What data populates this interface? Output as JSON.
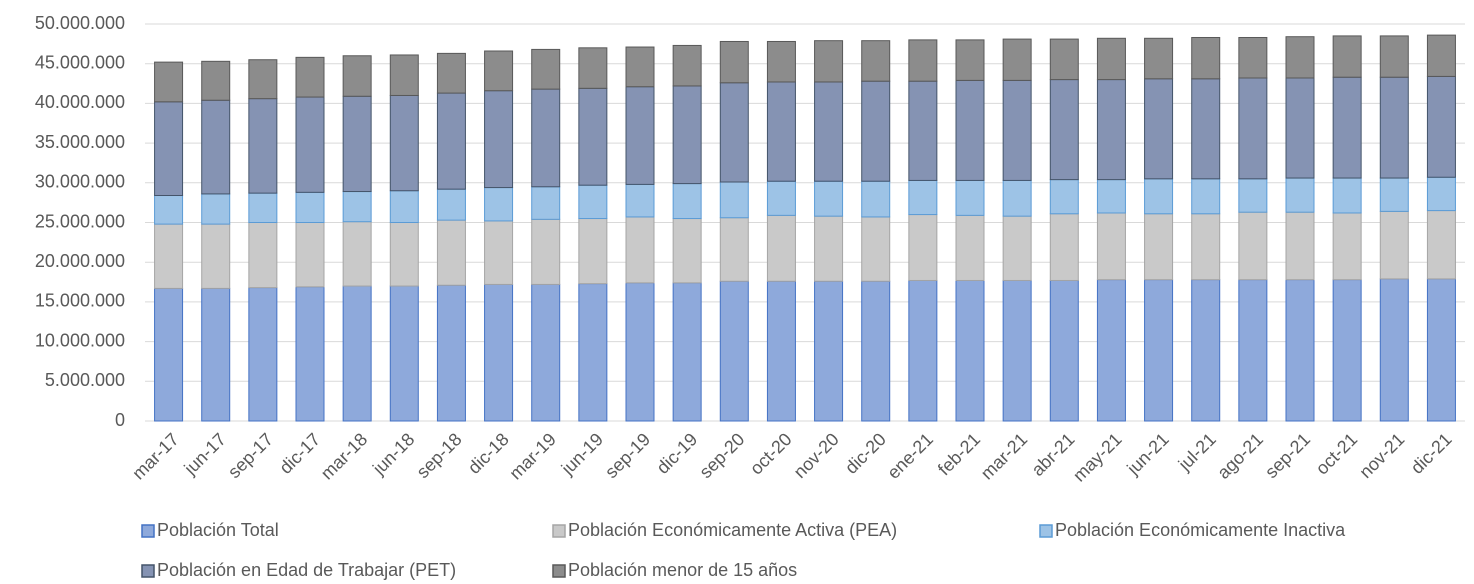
{
  "chart_data": {
    "type": "stacked-bar",
    "categories": [
      "mar-17",
      "jun-17",
      "sep-17",
      "dic-17",
      "mar-18",
      "jun-18",
      "sep-18",
      "dic-18",
      "mar-19",
      "jun-19",
      "sep-19",
      "dic-19",
      "sep-20",
      "oct-20",
      "nov-20",
      "dic-20",
      "ene-21",
      "feb-21",
      "mar-21",
      "abr-21",
      "may-21",
      "jun-21",
      "jul-21",
      "ago-21",
      "sep-21",
      "oct-21",
      "nov-21",
      "dic-21"
    ],
    "series": [
      {
        "name": "Población Total",
        "color": "#8ea9db",
        "edge": "#4472c4",
        "values": [
          16700000,
          16700000,
          16800000,
          16900000,
          17000000,
          17000000,
          17100000,
          17200000,
          17200000,
          17300000,
          17400000,
          17400000,
          17600000,
          17600000,
          17600000,
          17600000,
          17700000,
          17700000,
          17700000,
          17700000,
          17800000,
          17800000,
          17800000,
          17800000,
          17800000,
          17800000,
          17900000,
          17900000
        ]
      },
      {
        "name": "Población Económicamente Activa (PEA)",
        "color": "#c9c9c9",
        "edge": "#a5a5a5",
        "values": [
          8100000,
          8100000,
          8200000,
          8100000,
          8100000,
          8000000,
          8200000,
          8000000,
          8200000,
          8200000,
          8300000,
          8100000,
          8000000,
          8300000,
          8200000,
          8100000,
          8300000,
          8200000,
          8100000,
          8400000,
          8400000,
          8300000,
          8300000,
          8500000,
          8500000,
          8400000,
          8500000,
          8600000
        ]
      },
      {
        "name": "Población Económicamente Inactiva",
        "color": "#9dc3e6",
        "edge": "#5b9bd5",
        "values": [
          3600000,
          3800000,
          3700000,
          3800000,
          3800000,
          4000000,
          3900000,
          4200000,
          4100000,
          4200000,
          4100000,
          4400000,
          4500000,
          4300000,
          4400000,
          4500000,
          4300000,
          4400000,
          4500000,
          4300000,
          4200000,
          4400000,
          4400000,
          4200000,
          4300000,
          4400000,
          4200000,
          4200000
        ]
      },
      {
        "name": "Población en Edad de Trabajar (PET)",
        "color": "#8593b3",
        "edge": "#44546a",
        "values": [
          11800000,
          11800000,
          11900000,
          12000000,
          12000000,
          12000000,
          12100000,
          12200000,
          12300000,
          12200000,
          12300000,
          12300000,
          12500000,
          12500000,
          12500000,
          12600000,
          12500000,
          12600000,
          12600000,
          12600000,
          12600000,
          12600000,
          12600000,
          12700000,
          12600000,
          12700000,
          12700000,
          12700000
        ]
      },
      {
        "name": "Población menor de 15 años",
        "color": "#8c8c8c",
        "edge": "#595959",
        "values": [
          5000000,
          4900000,
          4900000,
          5000000,
          5100000,
          5100000,
          5000000,
          5000000,
          5000000,
          5100000,
          5000000,
          5100000,
          5200000,
          5100000,
          5200000,
          5100000,
          5200000,
          5100000,
          5200000,
          5100000,
          5200000,
          5100000,
          5200000,
          5100000,
          5200000,
          5200000,
          5200000,
          5200000
        ]
      }
    ],
    "ylim": [
      0,
      50000000
    ],
    "yticks": [
      0,
      {
        "value": 5000000,
        "label": "5.000.000"
      },
      {
        "value": 10000000,
        "label": "10.000.000"
      },
      {
        "value": 15000000,
        "label": "15.000.000"
      },
      {
        "value": 20000000,
        "label": "20.000.000"
      },
      {
        "value": 25000000,
        "label": "25.000.000"
      },
      {
        "value": 30000000,
        "label": "30.000.000"
      },
      {
        "value": 35000000,
        "label": "35.000.000"
      },
      {
        "value": 40000000,
        "label": "40.000.000"
      },
      {
        "value": 45000000,
        "label": "45.000.000"
      },
      {
        "value": 50000000,
        "label": "50.000.000"
      }
    ],
    "grid": true,
    "legend": "bottom"
  }
}
